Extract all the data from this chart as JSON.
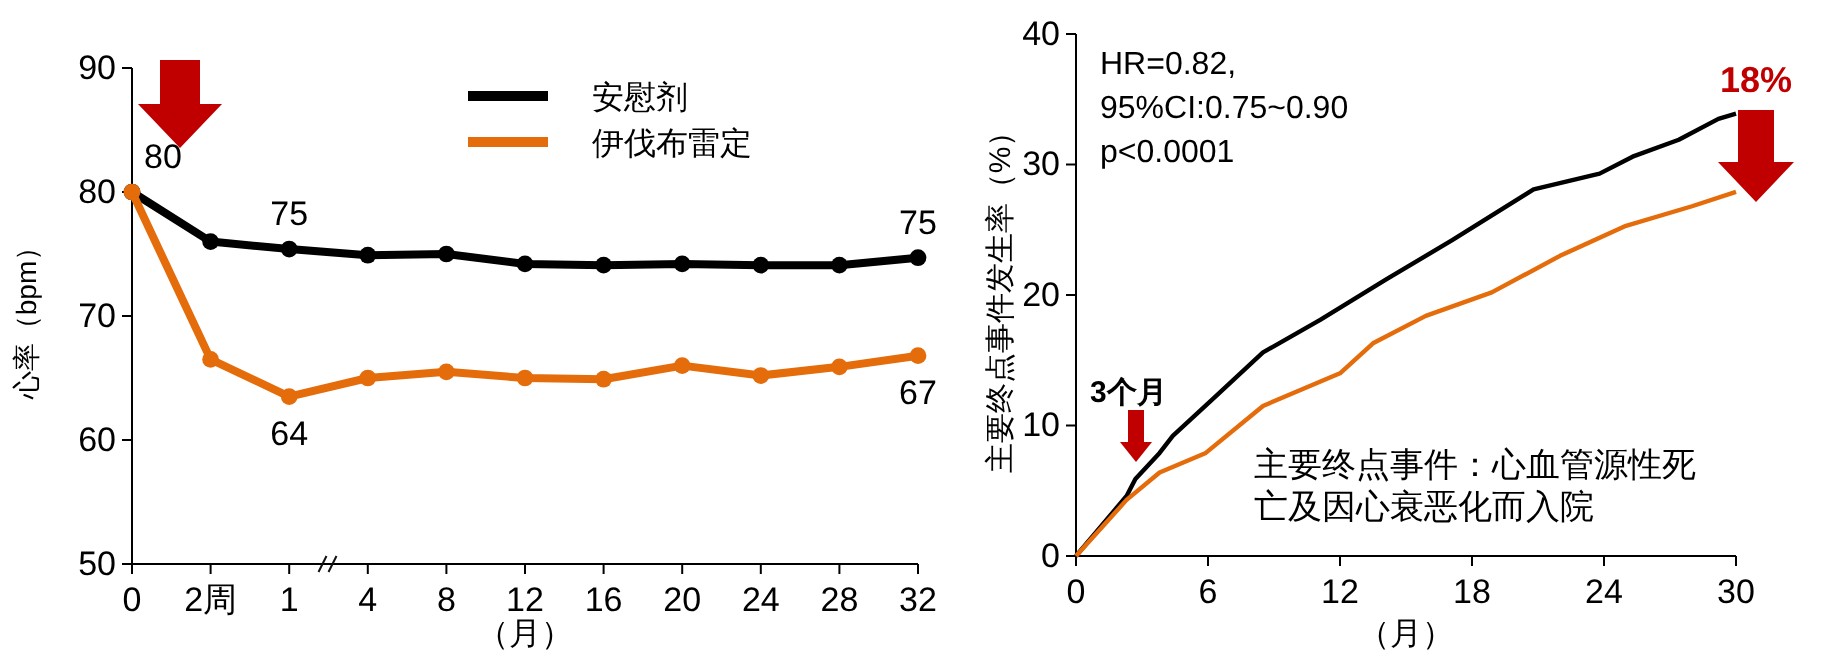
{
  "chart_data": [
    {
      "type": "line",
      "categories": [
        "0",
        "2周",
        "1",
        "4",
        "8",
        "12",
        "16",
        "20",
        "24",
        "28",
        "32"
      ],
      "xlabel": "（月）",
      "ylabel": "心率（bpm）",
      "ylim": [
        50,
        90
      ],
      "yticks": [
        50,
        60,
        70,
        80,
        90
      ],
      "grid": false,
      "legend": "top right",
      "marker": "circle",
      "series": [
        {
          "name": "安慰剂",
          "color": "#000000",
          "values": [
            80,
            76,
            75.4,
            74.9,
            75,
            74.2,
            74.1,
            74.2,
            74.1,
            74.1,
            74.7
          ],
          "value_labels": [
            "80",
            null,
            "75",
            null,
            null,
            null,
            null,
            null,
            null,
            null,
            "75"
          ]
        },
        {
          "name": "伊伐布雷定",
          "color": "#e46c0a",
          "values": [
            80,
            66.5,
            63.5,
            65,
            65.5,
            65,
            64.9,
            66,
            65.2,
            65.9,
            66.8
          ],
          "value_labels": [
            null,
            null,
            "64",
            null,
            null,
            null,
            null,
            null,
            null,
            null,
            "67"
          ]
        }
      ]
    },
    {
      "type": "line",
      "xlabel": "（月）",
      "ylabel": "主要终点事件发生率（%）",
      "xlim": [
        0,
        30
      ],
      "xticks": [
        0,
        6,
        12,
        18,
        24,
        30
      ],
      "ylim": [
        0,
        40
      ],
      "yticks": [
        0,
        10,
        20,
        30,
        40
      ],
      "grid": false,
      "marker": "none",
      "annotations": [
        "HR=0.82,",
        "95%CI:0.75~0.90",
        "p<0.0001",
        "3个月",
        "18%",
        "主要终点事件：心血管源性死亡及因心衰恶化而入院"
      ],
      "series": [
        {
          "color": "#000000",
          "x": [
            0,
            2.3,
            2.7,
            3.8,
            4.4,
            6.2,
            8.5,
            11.1,
            14.1,
            17.1,
            20.8,
            23.8,
            25.3,
            27.4,
            29.2,
            30
          ],
          "values": [
            0,
            4.6,
            5.9,
            7.9,
            9.2,
            12,
            15.6,
            18.1,
            21.2,
            24.2,
            28.1,
            29.3,
            30.6,
            31.9,
            33.5,
            33.9
          ]
        },
        {
          "color": "#e46c0a",
          "x": [
            0,
            2.3,
            3.8,
            5.9,
            8.5,
            12,
            13.5,
            15.9,
            18.9,
            22,
            25,
            28,
            30
          ],
          "values": [
            0,
            4.3,
            6.4,
            7.9,
            11.5,
            14,
            16.3,
            18.4,
            20.2,
            23,
            25.3,
            26.8,
            27.9
          ]
        }
      ]
    }
  ]
}
